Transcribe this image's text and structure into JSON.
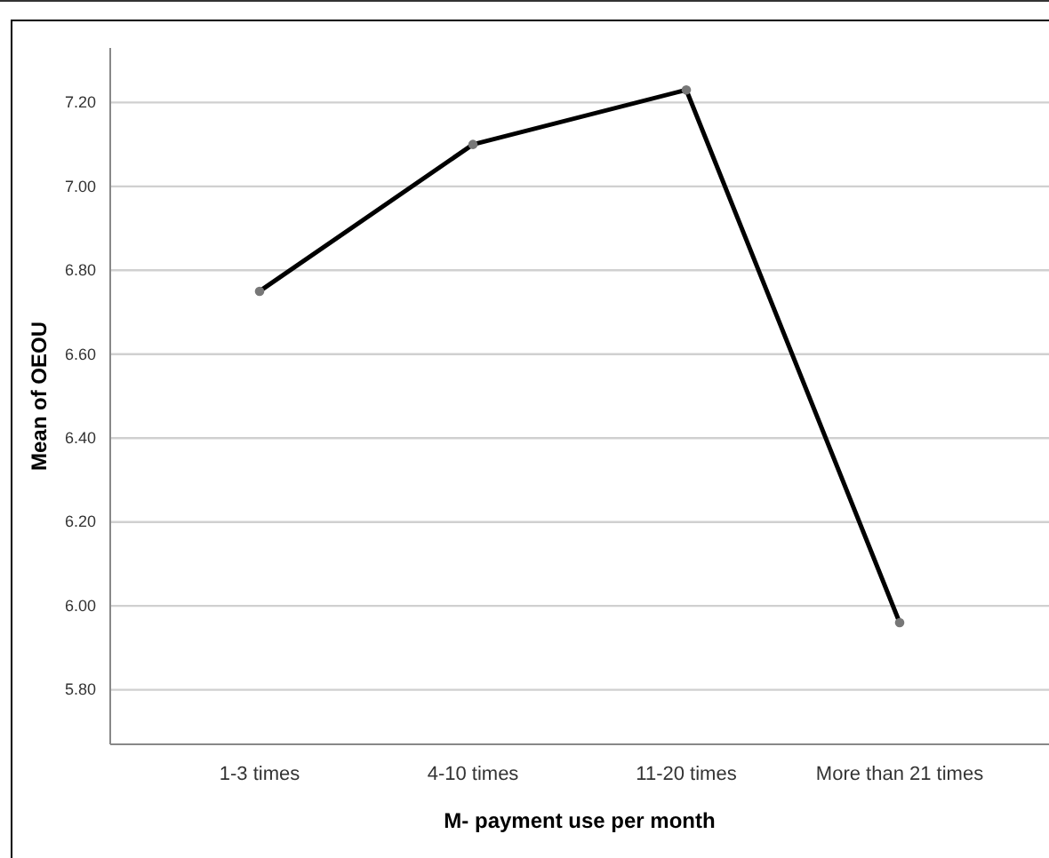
{
  "chart_data": {
    "type": "line",
    "xlabel": "M- payment use per month",
    "ylabel": "Mean of OEOU",
    "categories": [
      "1-3 times",
      "4-10 times",
      "11-20 times",
      "More than 21 times"
    ],
    "series": [
      {
        "color": "#000000",
        "values": [
          6.75,
          7.1,
          7.23,
          5.96
        ]
      }
    ],
    "ylim": [
      5.67,
      7.33
    ],
    "yticks": [
      {
        "value": 5.8,
        "label": "5.80"
      },
      {
        "value": 6.0,
        "label": "6.00"
      },
      {
        "value": 6.2,
        "label": "6.20"
      },
      {
        "value": 6.4,
        "label": "6.40"
      },
      {
        "value": 6.6,
        "label": "6.60"
      },
      {
        "value": 6.8,
        "label": "6.80"
      },
      {
        "value": 7.0,
        "label": "7.00"
      },
      {
        "value": 7.2,
        "label": "7.20"
      }
    ],
    "grid": "y",
    "marker": "circle",
    "line_style": "solid"
  }
}
